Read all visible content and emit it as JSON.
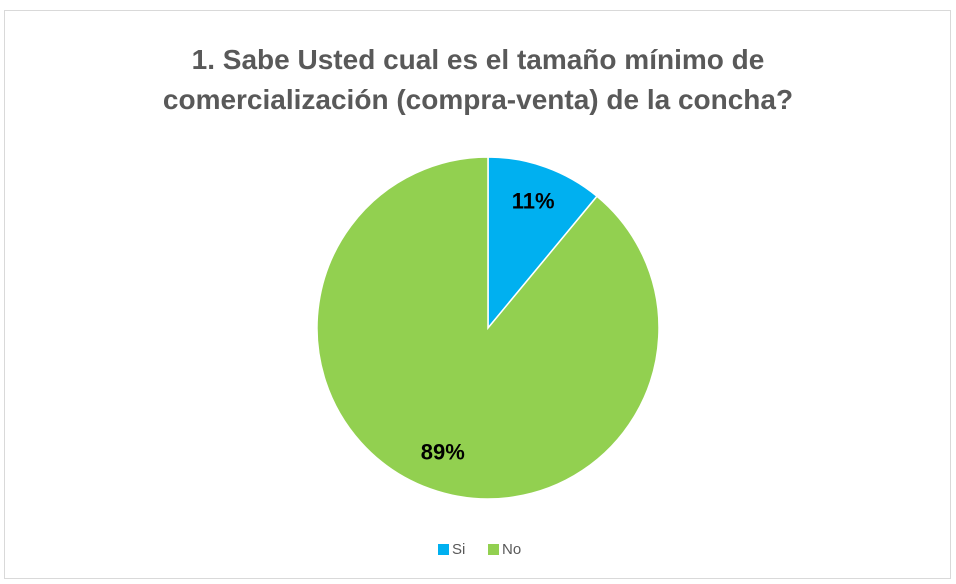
{
  "chart_data": {
    "type": "pie",
    "title": "1. Sabe Usted cual es el tamaño mínimo de comercialización (compra-venta) de la concha?",
    "categories": [
      "Si",
      "No"
    ],
    "values": [
      11,
      89
    ],
    "value_labels": [
      "11%",
      "89%"
    ],
    "colors": [
      "#00b0f0",
      "#92d050"
    ],
    "legend": "bottom"
  }
}
